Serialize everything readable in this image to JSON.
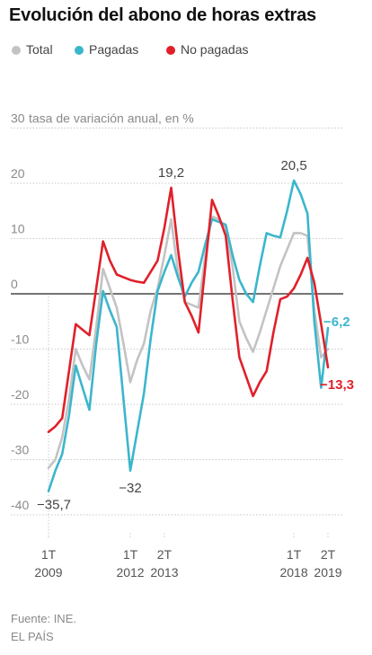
{
  "title": "Evolución del abono de horas extras",
  "legend": [
    {
      "label": "Total",
      "color": "#c3c3c3"
    },
    {
      "label": "Pagadas",
      "color": "#3bb6cc"
    },
    {
      "label": "No pagadas",
      "color": "#e0202a"
    }
  ],
  "footer": {
    "source": "Fuente: INE.",
    "publisher": "EL PAÍS"
  },
  "chart_data": {
    "type": "line",
    "ylabel": "tasa de variación anual, en %",
    "ylim": [
      -45,
      30
    ],
    "yticks": [
      30,
      20,
      10,
      0,
      -10,
      -20,
      -30,
      -40
    ],
    "ytick_labels": [
      "30",
      "20",
      "10",
      "0",
      "-10",
      "-20",
      "-30",
      "-40"
    ],
    "x": [
      "1T 2009",
      "2T 2009",
      "3T 2009",
      "4T 2009",
      "1T 2010",
      "2T 2010",
      "3T 2010",
      "4T 2010",
      "1T 2011",
      "2T 2011",
      "3T 2011",
      "4T 2011",
      "1T 2012",
      "2T 2012",
      "3T 2012",
      "4T 2012",
      "1T 2013",
      "2T 2013",
      "3T 2013",
      "4T 2013",
      "1T 2014",
      "2T 2014",
      "3T 2014",
      "4T 2014",
      "1T 2015",
      "2T 2015",
      "3T 2015",
      "4T 2015",
      "1T 2016",
      "2T 2016",
      "3T 2016",
      "4T 2016",
      "1T 2017",
      "2T 2017",
      "3T 2017",
      "4T 2017",
      "1T 2018",
      "2T 2018",
      "3T 2018",
      "4T 2018",
      "1T 2019",
      "2T 2019"
    ],
    "xtick_labels": [
      {
        "index": 0,
        "top": "1T",
        "bottom": "2009"
      },
      {
        "index": 12,
        "top": "1T",
        "bottom": "2012"
      },
      {
        "index": 17,
        "top": "2T",
        "bottom": "2013"
      },
      {
        "index": 36,
        "top": "1T",
        "bottom": "2018"
      },
      {
        "index": 41,
        "top": "2T",
        "bottom": "2019"
      }
    ],
    "series": [
      {
        "name": "Total",
        "color": "#c3c3c3",
        "values": [
          -31.5,
          -30,
          -26,
          -19,
          -10,
          -13,
          -15.5,
          -6,
          4.5,
          1,
          -2.5,
          -9,
          -16,
          -12,
          -9,
          -3,
          1,
          7,
          13.5,
          4,
          -1.5,
          -2,
          -2.5,
          7,
          14,
          13.5,
          12,
          5,
          -5,
          -8,
          -10.5,
          -7,
          -3,
          1,
          5,
          8,
          11,
          11,
          10.5,
          -3,
          -11.5,
          -10
        ]
      },
      {
        "name": "Pagadas",
        "color": "#3bb6cc",
        "values": [
          -35.7,
          -32,
          -29,
          -22,
          -13,
          -17,
          -21,
          -9,
          0.5,
          -3,
          -6,
          -19,
          -32,
          -25,
          -18,
          -8,
          0.5,
          4,
          7,
          3,
          -0.5,
          2,
          4,
          9,
          13.5,
          13,
          12.5,
          7,
          2.5,
          0,
          -1.5,
          5,
          11,
          10.5,
          10.2,
          15,
          20.5,
          18,
          14.5,
          -5,
          -17,
          -6.2
        ]
      },
      {
        "name": "No pagadas",
        "color": "#e0202a",
        "values": [
          -25,
          -24,
          -22.5,
          -14,
          -5.5,
          -6.5,
          -7.5,
          1,
          9.5,
          6,
          3.5,
          3,
          2.5,
          2.2,
          2,
          4,
          6,
          12,
          19.2,
          8,
          -1.5,
          -4,
          -7,
          5,
          17,
          14,
          10.5,
          -1,
          -11.5,
          -15,
          -18.5,
          -16,
          -14,
          -7,
          -1,
          -0.5,
          1,
          3.5,
          6.5,
          2,
          -5.5,
          -13.3
        ]
      }
    ],
    "annotations": [
      {
        "text": "19,2",
        "x_index": 18,
        "y": 19.2,
        "color": "#444444"
      },
      {
        "text": "20,5",
        "x_index": 36,
        "y": 20.5,
        "color": "#444444"
      },
      {
        "text": "−32",
        "x_index": 12,
        "y": -32,
        "color": "#444444"
      },
      {
        "text": "−35,7",
        "x_index": 0,
        "y": -35.7,
        "color": "#444444"
      },
      {
        "text": "−6,2",
        "x_index": 41,
        "y": -6.2,
        "color": "#3bb6cc"
      },
      {
        "text": "−13,3",
        "x_index": 41,
        "y": -13.3,
        "color": "#e0202a"
      }
    ]
  }
}
